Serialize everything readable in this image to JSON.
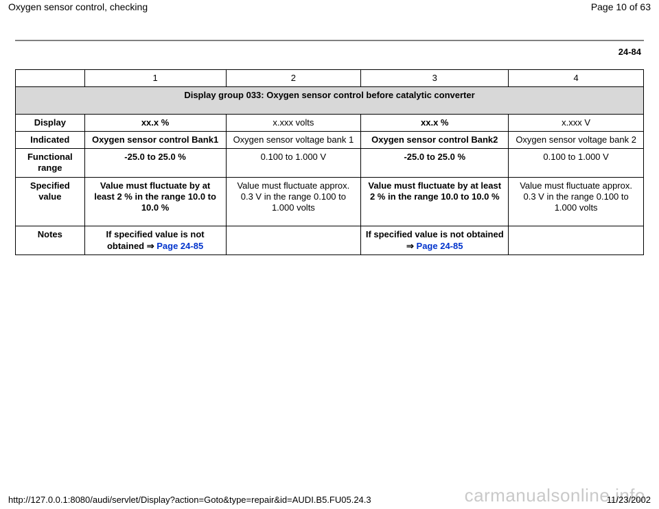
{
  "header": {
    "title": "Oxygen sensor control, checking",
    "page_indicator": "Page 10 of 63"
  },
  "doc_number": "24-84",
  "table": {
    "col_headers": [
      "",
      "1",
      "2",
      "3",
      "4"
    ],
    "group_title": "Display group 033: Oxygen sensor control before catalytic converter",
    "rows": {
      "display": {
        "label": "Display",
        "c1": "xx.x %",
        "c2": "x.xxx volts",
        "c3": "xx.x %",
        "c4": "x.xxx V"
      },
      "indicated": {
        "label": "Indicated",
        "c1": "Oxygen sensor control Bank1",
        "c2": "Oxygen sensor voltage bank 1",
        "c3": "Oxygen sensor control Bank2",
        "c4": "Oxygen sensor voltage bank 2"
      },
      "functional": {
        "label": "Functional range",
        "c1": "-25.0 to 25.0 %",
        "c2": "0.100 to 1.000 V",
        "c3": "-25.0 to 25.0 %",
        "c4": "0.100 to 1.000 V"
      },
      "specified": {
        "label": "Specified value",
        "c1": "Value must fluctuate by at least 2 % in the range 10.0 to 10.0 %",
        "c2": "Value must fluctuate approx. 0.3 V in the range 0.100 to 1.000 volts",
        "c3": "Value must fluctuate by at least 2 % in the range 10.0 to 10.0 %",
        "c4": "Value must fluctuate approx. 0.3 V in the range 0.100 to 1.000 volts"
      },
      "notes": {
        "label": "Notes",
        "prefix": "If specified value is not obtained ",
        "link": "Page 24-85"
      }
    }
  },
  "footer": {
    "url": "http://127.0.0.1:8080/audi/servlet/Display?action=Goto&type=repair&id=AUDI.B5.FU05.24.3",
    "date": "11/23/2002"
  },
  "watermark": "carmanualsonline.info",
  "colors": {
    "link": "#0033cc",
    "group_bg": "#d8d8d8",
    "watermark": "#c9c9c9",
    "rule": "#808080"
  }
}
